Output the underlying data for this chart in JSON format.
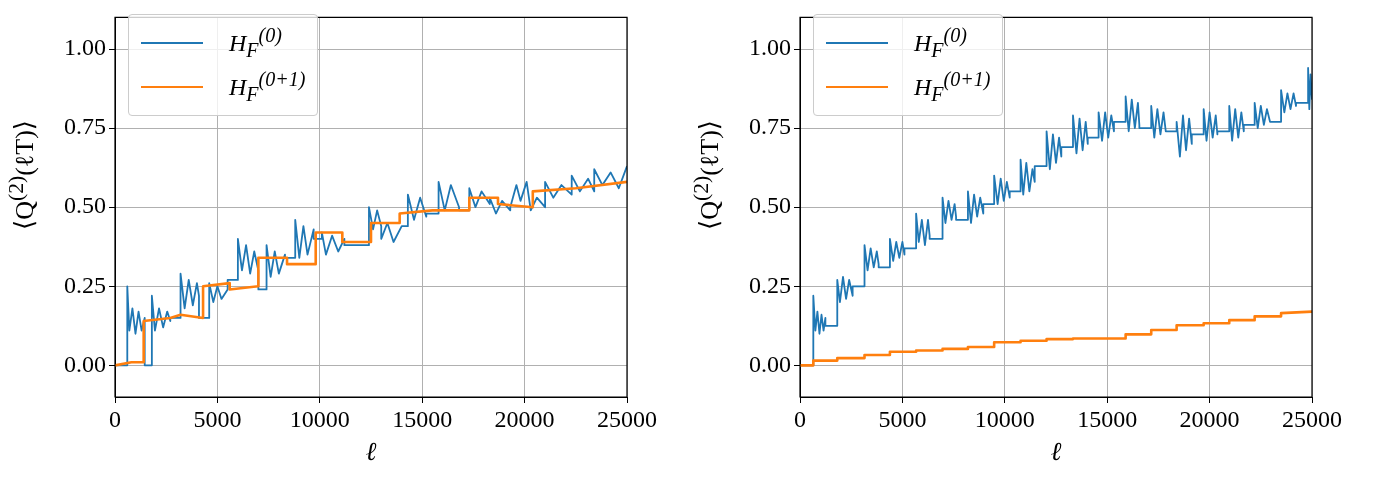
{
  "chart_data": [
    {
      "type": "line",
      "xlabel": "ℓ",
      "ylabel": "⟨Q$^{(2)}$(ℓT)⟩",
      "xlim": [
        0,
        25000
      ],
      "ylim": [
        -0.1,
        1.1
      ],
      "xticks": [
        0,
        5000,
        10000,
        15000,
        20000,
        25000
      ],
      "yticks": [
        {
          "value": 0,
          "label": "0.00"
        },
        {
          "value": 0.25,
          "label": "0.25"
        },
        {
          "value": 0.5,
          "label": "0.50"
        },
        {
          "value": 0.75,
          "label": "0.75"
        },
        {
          "value": 1,
          "label": "1.00"
        }
      ],
      "grid": true,
      "legend": "top left",
      "marker": "none",
      "line_style": "solid",
      "series": [
        {
          "name": "H$_{F}$$^{(0)}$",
          "color": "#1f77b4",
          "x": [
            0,
            600,
            600,
            700,
            850,
            1000,
            1150,
            1300,
            1450,
            1450,
            1800,
            1800,
            1950,
            2150,
            2350,
            2550,
            2700,
            2700,
            3200,
            3200,
            3400,
            3600,
            3800,
            4000,
            4100,
            4100,
            4600,
            4600,
            4800,
            5000,
            5200,
            5500,
            5500,
            6000,
            6000,
            6200,
            6400,
            6600,
            6800,
            7000,
            7000,
            7400,
            7400,
            7600,
            7800,
            8000,
            8300,
            8300,
            8800,
            8800,
            9000,
            9200,
            9400,
            9700,
            9700,
            10100,
            10100,
            10300,
            10600,
            10900,
            11200,
            11200,
            12400,
            12400,
            12600,
            12800,
            13000,
            13000,
            13300,
            13600,
            14000,
            14300,
            14300,
            14600,
            14900,
            15200,
            15200,
            15800,
            15800,
            16100,
            16400,
            16800,
            16800,
            17300,
            17300,
            17600,
            17900,
            18300,
            18300,
            18600,
            18900,
            19300,
            19300,
            19600,
            19800,
            20100,
            20300,
            20600,
            21000,
            21000,
            21400,
            21800,
            22300,
            22300,
            22700,
            23100,
            23400,
            23400,
            23800,
            24200,
            24600,
            25000
          ],
          "values": [
            0,
            0,
            0.25,
            0.11,
            0.18,
            0.1,
            0.17,
            0.11,
            0.15,
            0,
            0,
            0.22,
            0.11,
            0.18,
            0.12,
            0.17,
            0.14,
            0.15,
            0.15,
            0.29,
            0.18,
            0.27,
            0.19,
            0.26,
            0.22,
            0.15,
            0.15,
            0.26,
            0.2,
            0.25,
            0.21,
            0.24,
            0.27,
            0.27,
            0.4,
            0.3,
            0.38,
            0.29,
            0.36,
            0.3,
            0.24,
            0.24,
            0.38,
            0.28,
            0.36,
            0.29,
            0.35,
            0.34,
            0.34,
            0.46,
            0.34,
            0.44,
            0.35,
            0.43,
            0.4,
            0.4,
            0.42,
            0.35,
            0.41,
            0.36,
            0.4,
            0.38,
            0.38,
            0.5,
            0.43,
            0.49,
            0.44,
            0.4,
            0.45,
            0.39,
            0.44,
            0.44,
            0.54,
            0.46,
            0.53,
            0.47,
            0.48,
            0.48,
            0.58,
            0.49,
            0.57,
            0.5,
            0.49,
            0.49,
            0.56,
            0.5,
            0.55,
            0.51,
            0.53,
            0.48,
            0.52,
            0.49,
            0.5,
            0.57,
            0.52,
            0.58,
            0.49,
            0.53,
            0.5,
            0.58,
            0.53,
            0.57,
            0.54,
            0.6,
            0.55,
            0.59,
            0.55,
            0.62,
            0.57,
            0.61,
            0.56,
            0.63
          ]
        },
        {
          "name": "H$_{F}$$^{(0+1)}$",
          "color": "#ff7f0e",
          "x": [
            0,
            800,
            1400,
            1400,
            2700,
            3200,
            4300,
            4300,
            5600,
            5600,
            7000,
            7000,
            8400,
            8400,
            9800,
            9800,
            11100,
            11100,
            12500,
            12500,
            13900,
            13900,
            15500,
            17300,
            17300,
            18700,
            18700,
            20400,
            20400,
            22500,
            25000
          ],
          "values": [
            0,
            0.01,
            0.01,
            0.14,
            0.15,
            0.16,
            0.15,
            0.25,
            0.26,
            0.24,
            0.25,
            0.34,
            0.34,
            0.32,
            0.32,
            0.42,
            0.42,
            0.39,
            0.39,
            0.45,
            0.45,
            0.48,
            0.49,
            0.49,
            0.53,
            0.53,
            0.51,
            0.5,
            0.55,
            0.56,
            0.58
          ]
        }
      ]
    },
    {
      "type": "line",
      "xlabel": "ℓ",
      "ylabel": "⟨Q$^{(2)}$(ℓT)⟩",
      "xlim": [
        0,
        25000
      ],
      "ylim": [
        -0.1,
        1.1
      ],
      "xticks": [
        0,
        5000,
        10000,
        15000,
        20000,
        25000
      ],
      "yticks": [
        {
          "value": 0,
          "label": "0.00"
        },
        {
          "value": 0.25,
          "label": "0.25"
        },
        {
          "value": 0.5,
          "label": "0.50"
        },
        {
          "value": 0.75,
          "label": "0.75"
        },
        {
          "value": 1,
          "label": "1.00"
        }
      ],
      "grid": true,
      "legend": "top left",
      "marker": "none",
      "line_style": "solid",
      "series": [
        {
          "name": "H$_{F}$$^{(0)}$",
          "color": "#1f77b4",
          "x": [
            0,
            650,
            650,
            750,
            850,
            950,
            1050,
            1150,
            1240,
            1240,
            1820,
            1820,
            1950,
            2100,
            2250,
            2400,
            2570,
            2570,
            3150,
            3150,
            3300,
            3450,
            3600,
            3750,
            3840,
            3840,
            4390,
            4390,
            4550,
            4700,
            4850,
            5000,
            5100,
            5100,
            5670,
            5670,
            5800,
            5950,
            6100,
            6250,
            6330,
            6330,
            6960,
            6960,
            7100,
            7250,
            7400,
            7550,
            7620,
            7620,
            8200,
            8200,
            8350,
            8500,
            8650,
            8800,
            8950,
            8950,
            9480,
            9480,
            9650,
            9800,
            9950,
            10100,
            10240,
            10240,
            10770,
            10770,
            10900,
            11050,
            11200,
            11350,
            11460,
            11460,
            12040,
            12040,
            12200,
            12350,
            12500,
            12650,
            12760,
            12760,
            13330,
            13330,
            13500,
            13650,
            13800,
            13950,
            14050,
            14050,
            14580,
            14580,
            14750,
            14900,
            15050,
            15200,
            15330,
            15330,
            15900,
            15900,
            16050,
            16200,
            16350,
            16500,
            16570,
            16570,
            17150,
            17150,
            17300,
            17450,
            17600,
            17750,
            17860,
            18390,
            18390,
            18550,
            18700,
            18850,
            19000,
            19130,
            19130,
            19710,
            19710,
            19850,
            20000,
            20150,
            20300,
            20380,
            20380,
            20960,
            20960,
            21100,
            21250,
            21400,
            21550,
            21670,
            21670,
            22200,
            22200,
            22350,
            22500,
            22650,
            22800,
            22950,
            23490,
            23490,
            23650,
            23800,
            23950,
            24100,
            24220,
            24220,
            24810,
            24810,
            24870,
            24930,
            25000
          ],
          "values": [
            0,
            0,
            0.22,
            0.11,
            0.17,
            0.1,
            0.16,
            0.11,
            0.15,
            0.125,
            0.125,
            0.27,
            0.2,
            0.28,
            0.21,
            0.27,
            0.22,
            0.25,
            0.25,
            0.38,
            0.3,
            0.37,
            0.31,
            0.36,
            0.32,
            0.31,
            0.31,
            0.4,
            0.33,
            0.39,
            0.34,
            0.39,
            0.35,
            0.37,
            0.37,
            0.48,
            0.39,
            0.46,
            0.38,
            0.46,
            0.41,
            0.4,
            0.4,
            0.53,
            0.45,
            0.52,
            0.46,
            0.51,
            0.47,
            0.46,
            0.46,
            0.55,
            0.45,
            0.54,
            0.47,
            0.53,
            0.48,
            0.51,
            0.51,
            0.6,
            0.51,
            0.59,
            0.52,
            0.58,
            0.53,
            0.55,
            0.55,
            0.65,
            0.54,
            0.64,
            0.55,
            0.62,
            0.58,
            0.63,
            0.63,
            0.74,
            0.62,
            0.73,
            0.64,
            0.72,
            0.66,
            0.69,
            0.69,
            0.79,
            0.67,
            0.78,
            0.68,
            0.77,
            0.7,
            0.72,
            0.72,
            0.8,
            0.71,
            0.8,
            0.72,
            0.79,
            0.74,
            0.77,
            0.77,
            0.85,
            0.74,
            0.84,
            0.75,
            0.83,
            0.76,
            0.75,
            0.75,
            0.82,
            0.72,
            0.81,
            0.73,
            0.8,
            0.74,
            0.74,
            0.77,
            0.66,
            0.79,
            0.68,
            0.78,
            0.7,
            0.73,
            0.73,
            0.81,
            0.71,
            0.8,
            0.72,
            0.79,
            0.73,
            0.74,
            0.74,
            0.82,
            0.71,
            0.81,
            0.72,
            0.8,
            0.74,
            0.76,
            0.76,
            0.83,
            0.75,
            0.82,
            0.76,
            0.81,
            0.77,
            0.77,
            0.87,
            0.8,
            0.86,
            0.81,
            0.86,
            0.82,
            0.83,
            0.83,
            0.94,
            0.81,
            0.92,
            0.84
          ]
        },
        {
          "name": "H$_{F}$$^{(0+1)}$",
          "color": "#ff7f0e",
          "x": [
            0,
            650,
            650,
            1820,
            1820,
            3150,
            3150,
            4390,
            4390,
            5670,
            5670,
            6960,
            6960,
            8200,
            8200,
            9480,
            9480,
            10770,
            10770,
            12040,
            12040,
            13330,
            13330,
            15900,
            15900,
            17150,
            17150,
            18390,
            18390,
            19710,
            19710,
            20960,
            20960,
            22200,
            22200,
            23490,
            23490,
            25000
          ],
          "values": [
            0,
            0,
            0.015,
            0.015,
            0.023,
            0.023,
            0.033,
            0.033,
            0.043,
            0.043,
            0.047,
            0.047,
            0.052,
            0.052,
            0.058,
            0.058,
            0.073,
            0.073,
            0.078,
            0.078,
            0.083,
            0.083,
            0.085,
            0.085,
            0.098,
            0.098,
            0.112,
            0.112,
            0.127,
            0.127,
            0.133,
            0.133,
            0.143,
            0.143,
            0.155,
            0.155,
            0.165,
            0.17
          ]
        }
      ]
    }
  ]
}
